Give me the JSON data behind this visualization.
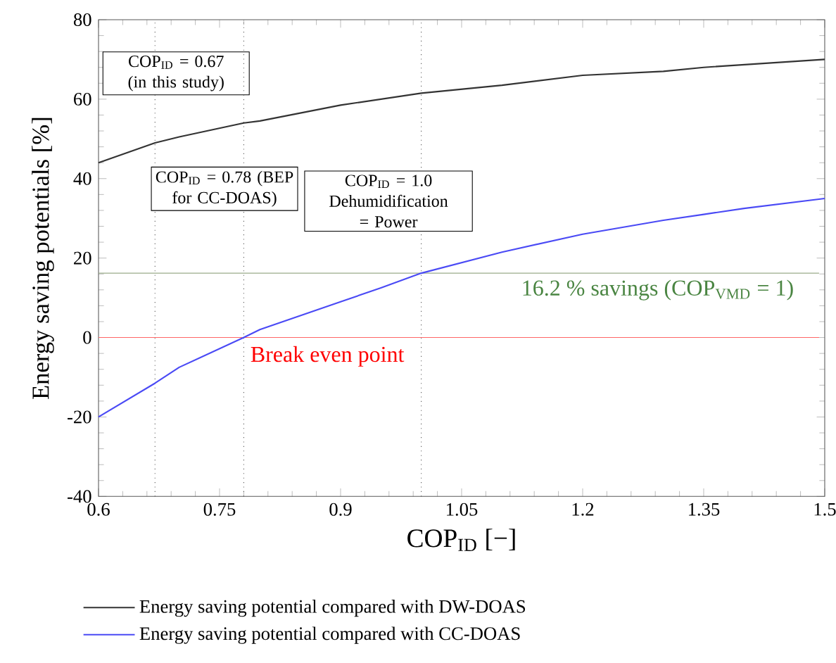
{
  "chart_data": {
    "type": "line",
    "xlabel": "COP$_{ID}$ [−]",
    "ylabel": "Energy saving potentials [%]",
    "xlim": [
      0.6,
      1.5
    ],
    "ylim": [
      -40,
      80
    ],
    "xticks": [
      0.6,
      0.75,
      0.9,
      1.05,
      1.2,
      1.35,
      1.5
    ],
    "yticks": [
      -40,
      -20,
      0,
      20,
      40,
      60,
      80
    ],
    "grid": false,
    "legend": "bottom",
    "line_style": "solid",
    "marker": "none",
    "series": [
      {
        "name": "Energy saving potential compared with DW-DOAS",
        "color": "#333333",
        "x": [
          0.6,
          0.67,
          0.7,
          0.78,
          0.8,
          0.9,
          1.0,
          1.1,
          1.2,
          1.3,
          1.35,
          1.5
        ],
        "values": [
          44,
          49,
          50.5,
          54,
          54.5,
          58.5,
          61.5,
          63.5,
          66,
          67,
          68,
          70
        ]
      },
      {
        "name": "Energy saving potential compared with CC-DOAS",
        "color": "#4a4af5",
        "x": [
          0.6,
          0.67,
          0.7,
          0.78,
          0.8,
          0.85,
          0.9,
          0.95,
          1.0,
          1.1,
          1.2,
          1.3,
          1.35,
          1.4,
          1.5
        ],
        "values": [
          -20,
          -11.5,
          -7.5,
          0,
          2,
          5.5,
          9,
          12.5,
          16.2,
          21.5,
          26,
          29.5,
          31,
          32.5,
          35
        ]
      }
    ],
    "ref_lines": [
      {
        "axis": "x",
        "value": 0.67,
        "label": "COP$_{ID}$ = 0.67 (in this study)",
        "color": "#555555",
        "line_style": "dotted"
      },
      {
        "axis": "x",
        "value": 0.78,
        "label": "COP$_{ID}$ = 0.78 (BEP for CC-DOAS)",
        "color": "#555555",
        "line_style": "dotted"
      },
      {
        "axis": "x",
        "value": 1.0,
        "label": "COP$_{ID}$ = 1.0 Dehumidification = Power",
        "color": "#555555",
        "line_style": "dotted"
      },
      {
        "axis": "y",
        "value": 16.2,
        "label": "16.2 % savings (COP$_{VMD}$ = 1)",
        "color": "#9aab8a",
        "line_style": "solid"
      },
      {
        "axis": "y",
        "value": 0,
        "label": "Break even point",
        "color": "#ff6666",
        "line_style": "solid"
      }
    ]
  }
}
